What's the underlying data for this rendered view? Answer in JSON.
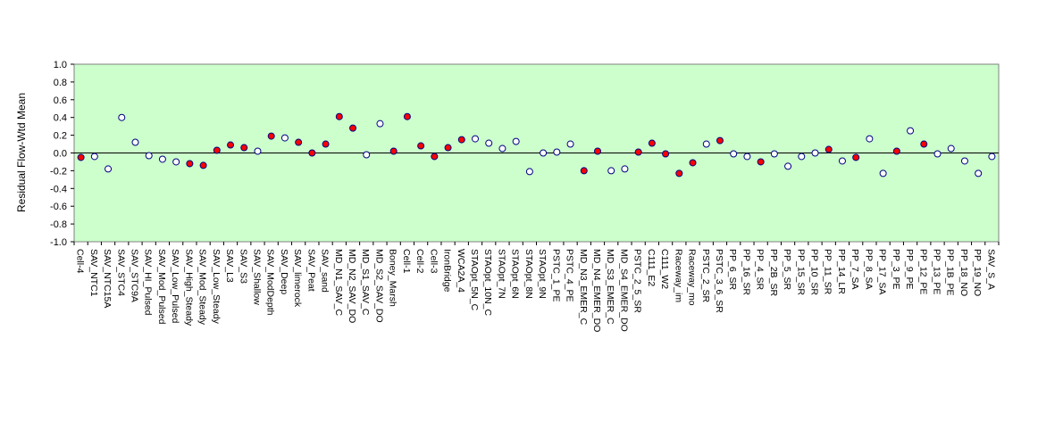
{
  "chart_data": {
    "type": "scatter",
    "ylabel": "Residual Flow-Wtd Mean",
    "ylim": [
      -1.0,
      1.0
    ],
    "ytick_step": 0.2,
    "background_color": "#ccffcc",
    "zero_line": true,
    "marker_colors": {
      "filled": "#ff0000",
      "open": "#ffffff",
      "edge": "#000080"
    },
    "categories": [
      "Cell-4",
      "SAV_NTC1",
      "SAV_NTC15A",
      "SAV_STC4",
      "SAV_STC9A",
      "SAV_HI_Pulsed",
      "SAV_Mod_Pulsed",
      "SAV_Low_Pulsed",
      "SAV_High_Steady",
      "SAV_Mod_Steady",
      "SAV_Low_Steady",
      "SAV_L3",
      "SAV_S3",
      "SAV_Shallow",
      "SAV_ModDepth",
      "SAV_Deep",
      "SAV_limerock",
      "SAV_Peat",
      "SAV_sand",
      "MD_N1_SAV_C",
      "MD_N2_SAV_DO",
      "MD_S1_SAV_C",
      "MD_S2_SAV_DO",
      "Boney_Marsh",
      "Cell-1",
      "Cell-2",
      "Cell-3",
      "IronBridge",
      "WCA2A_4",
      "STAOpt_5N_C",
      "STAOpt_10N_C",
      "STAOpt_7N",
      "STAOpt_6N",
      "STAOpt_8N",
      "STAOpt_9N",
      "PSTC_1_PE",
      "PSTC_4_PE",
      "MD_N3_EMER_C",
      "MD_N4_EMER_DO",
      "MD_S3_EMER_C",
      "MD_S4_EMER_DO",
      "PSTC_2_5_SR",
      "C111_E2",
      "C111_W2",
      "Raceway_im",
      "Raceway_mo",
      "PSTC_2_SR",
      "PSTC_3_6_SR",
      "PP_6_SR",
      "PP_16_SR",
      "PP_4_SR",
      "PP_2B_SR",
      "PP_5_SR",
      "PP_15_SR",
      "PP_10_SR",
      "PP_11_SR",
      "PP_14_LR",
      "PP_7_SA",
      "PP_8_SA",
      "PP_17_SA",
      "PP_3_PE",
      "PP_9_PE",
      "PP_12_PE",
      "PP_13_PE",
      "PP_1B_PE",
      "PP_18_NO",
      "PP_19_NO",
      "SAV_S_A"
    ],
    "values": [
      -0.05,
      -0.04,
      -0.18,
      0.4,
      0.12,
      -0.03,
      -0.07,
      -0.1,
      -0.12,
      -0.14,
      0.03,
      0.09,
      0.06,
      0.02,
      0.19,
      0.17,
      0.12,
      0.0,
      0.1,
      0.41,
      0.28,
      -0.02,
      0.33,
      0.02,
      0.41,
      0.08,
      -0.04,
      0.06,
      0.15,
      0.16,
      0.11,
      0.05,
      0.13,
      -0.21,
      0.0,
      0.01,
      0.1,
      -0.2,
      0.02,
      -0.2,
      -0.18,
      0.01,
      0.11,
      -0.01,
      -0.23,
      -0.11,
      0.1,
      0.14,
      -0.01,
      -0.04,
      -0.1,
      -0.01,
      -0.15,
      -0.04,
      0.0,
      0.04,
      -0.09,
      -0.05,
      0.16,
      -0.23,
      0.02,
      0.25,
      0.1,
      -0.01,
      0.05,
      -0.09,
      -0.23,
      -0.04
    ],
    "filled": [
      true,
      false,
      false,
      false,
      false,
      false,
      false,
      false,
      true,
      true,
      true,
      true,
      true,
      false,
      true,
      false,
      true,
      true,
      true,
      true,
      true,
      false,
      false,
      true,
      true,
      true,
      true,
      true,
      true,
      false,
      false,
      false,
      false,
      false,
      false,
      false,
      false,
      true,
      true,
      false,
      false,
      true,
      true,
      true,
      true,
      true,
      false,
      true,
      false,
      false,
      true,
      false,
      false,
      false,
      false,
      true,
      false,
      true,
      false,
      false,
      true,
      false,
      true,
      false,
      false,
      false,
      false,
      false
    ]
  }
}
